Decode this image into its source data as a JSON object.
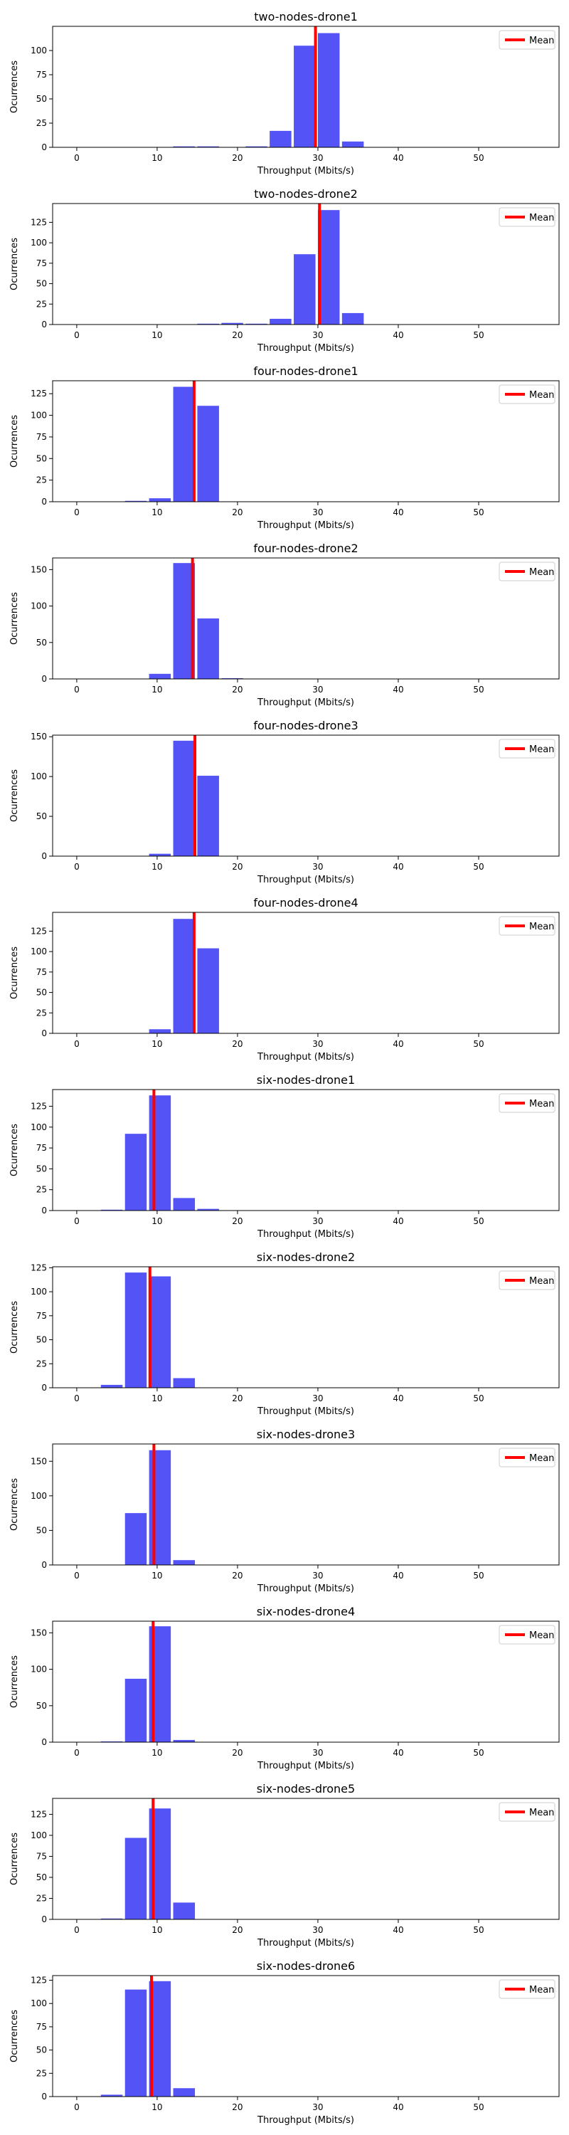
{
  "common": {
    "xlabel": "Throughput (Mbits/s)",
    "ylabel": "Ocurrences",
    "legend_label": "Mean",
    "bar_color": "#4b4bf5",
    "mean_color": "#ff0000",
    "x_ticks": [
      0,
      10,
      20,
      30,
      40,
      50
    ],
    "xlim": [
      -3,
      60
    ],
    "bin_width": 3
  },
  "chart_data": [
    {
      "type": "bar",
      "title": "two-nodes-drone1",
      "xlabel": "Throughput (Mbits/s)",
      "ylabel": "Ocurrences",
      "legend": "Mean",
      "legend_position": "top-right",
      "bin_starts": [
        12,
        15,
        18,
        21,
        24,
        27,
        30,
        33
      ],
      "values": [
        1,
        1,
        0,
        1,
        17,
        105,
        118,
        6
      ],
      "mean": 29.7,
      "ylim": [
        0,
        125
      ],
      "y_ticks": [
        0,
        25,
        50,
        75,
        100
      ]
    },
    {
      "type": "bar",
      "title": "two-nodes-drone2",
      "xlabel": "Throughput (Mbits/s)",
      "ylabel": "Ocurrences",
      "legend": "Mean",
      "legend_position": "top-right",
      "bin_starts": [
        15,
        18,
        21,
        24,
        27,
        30,
        33
      ],
      "values": [
        1,
        2,
        1,
        7,
        86,
        140,
        14
      ],
      "mean": 30.2,
      "ylim": [
        0,
        148
      ],
      "y_ticks": [
        0,
        25,
        50,
        75,
        100,
        125
      ]
    },
    {
      "type": "bar",
      "title": "four-nodes-drone1",
      "xlabel": "Throughput (Mbits/s)",
      "ylabel": "Ocurrences",
      "legend": "Mean",
      "legend_position": "top-right",
      "bin_starts": [
        6,
        9,
        12,
        15
      ],
      "values": [
        1,
        4,
        133,
        111
      ],
      "mean": 14.6,
      "ylim": [
        0,
        140
      ],
      "y_ticks": [
        0,
        25,
        50,
        75,
        100,
        125
      ]
    },
    {
      "type": "bar",
      "title": "four-nodes-drone2",
      "xlabel": "Throughput (Mbits/s)",
      "ylabel": "Ocurrences",
      "legend": "Mean",
      "legend_position": "top-right",
      "bin_starts": [
        9,
        12,
        15,
        18
      ],
      "values": [
        7,
        159,
        83,
        1
      ],
      "mean": 14.4,
      "ylim": [
        0,
        166
      ],
      "y_ticks": [
        0,
        50,
        100,
        150
      ]
    },
    {
      "type": "bar",
      "title": "four-nodes-drone3",
      "xlabel": "Throughput (Mbits/s)",
      "ylabel": "Ocurrences",
      "legend": "Mean",
      "legend_position": "top-right",
      "bin_starts": [
        9,
        12,
        15
      ],
      "values": [
        3,
        145,
        101
      ],
      "mean": 14.7,
      "ylim": [
        0,
        152
      ],
      "y_ticks": [
        0,
        50,
        100,
        150
      ]
    },
    {
      "type": "bar",
      "title": "four-nodes-drone4",
      "xlabel": "Throughput (Mbits/s)",
      "ylabel": "Ocurrences",
      "legend": "Mean",
      "legend_position": "top-right",
      "bin_starts": [
        9,
        12,
        15
      ],
      "values": [
        5,
        140,
        104
      ],
      "mean": 14.6,
      "ylim": [
        0,
        148
      ],
      "y_ticks": [
        0,
        25,
        50,
        75,
        100,
        125
      ]
    },
    {
      "type": "bar",
      "title": "six-nodes-drone1",
      "xlabel": "Throughput (Mbits/s)",
      "ylabel": "Ocurrences",
      "legend": "Mean",
      "legend_position": "top-right",
      "bin_starts": [
        3,
        6,
        9,
        12,
        15
      ],
      "values": [
        1,
        92,
        138,
        15,
        2
      ],
      "mean": 9.6,
      "ylim": [
        0,
        145
      ],
      "y_ticks": [
        0,
        25,
        50,
        75,
        100,
        125
      ]
    },
    {
      "type": "bar",
      "title": "six-nodes-drone2",
      "xlabel": "Throughput (Mbits/s)",
      "ylabel": "Ocurrences",
      "legend": "Mean",
      "legend_position": "top-right",
      "bin_starts": [
        3,
        6,
        9,
        12
      ],
      "values": [
        3,
        120,
        116,
        10
      ],
      "mean": 9.1,
      "ylim": [
        0,
        126
      ],
      "y_ticks": [
        0,
        25,
        50,
        75,
        100,
        125
      ]
    },
    {
      "type": "bar",
      "title": "six-nodes-drone3",
      "xlabel": "Throughput (Mbits/s)",
      "ylabel": "Ocurrences",
      "legend": "Mean",
      "legend_position": "top-right",
      "bin_starts": [
        6,
        9,
        12
      ],
      "values": [
        75,
        166,
        7
      ],
      "mean": 9.6,
      "ylim": [
        0,
        175
      ],
      "y_ticks": [
        0,
        50,
        100,
        150
      ]
    },
    {
      "type": "bar",
      "title": "six-nodes-drone4",
      "xlabel": "Throughput (Mbits/s)",
      "ylabel": "Ocurrences",
      "legend": "Mean",
      "legend_position": "top-right",
      "bin_starts": [
        3,
        6,
        9,
        12
      ],
      "values": [
        1,
        87,
        159,
        3
      ],
      "mean": 9.5,
      "ylim": [
        0,
        166
      ],
      "y_ticks": [
        0,
        50,
        100,
        150
      ]
    },
    {
      "type": "bar",
      "title": "six-nodes-drone5",
      "xlabel": "Throughput (Mbits/s)",
      "ylabel": "Ocurrences",
      "legend": "Mean",
      "legend_position": "top-right",
      "bin_starts": [
        3,
        6,
        9,
        12
      ],
      "values": [
        1,
        97,
        132,
        20
      ],
      "mean": 9.5,
      "ylim": [
        0,
        144
      ],
      "y_ticks": [
        0,
        25,
        50,
        75,
        100,
        125
      ]
    },
    {
      "type": "bar",
      "title": "six-nodes-drone6",
      "xlabel": "Throughput (Mbits/s)",
      "ylabel": "Ocurrences",
      "legend": "Mean",
      "legend_position": "top-right",
      "bin_starts": [
        3,
        6,
        9,
        12
      ],
      "values": [
        2,
        115,
        124,
        9
      ],
      "mean": 9.3,
      "ylim": [
        0,
        130
      ],
      "y_ticks": [
        0,
        25,
        50,
        75,
        100,
        125
      ]
    }
  ]
}
